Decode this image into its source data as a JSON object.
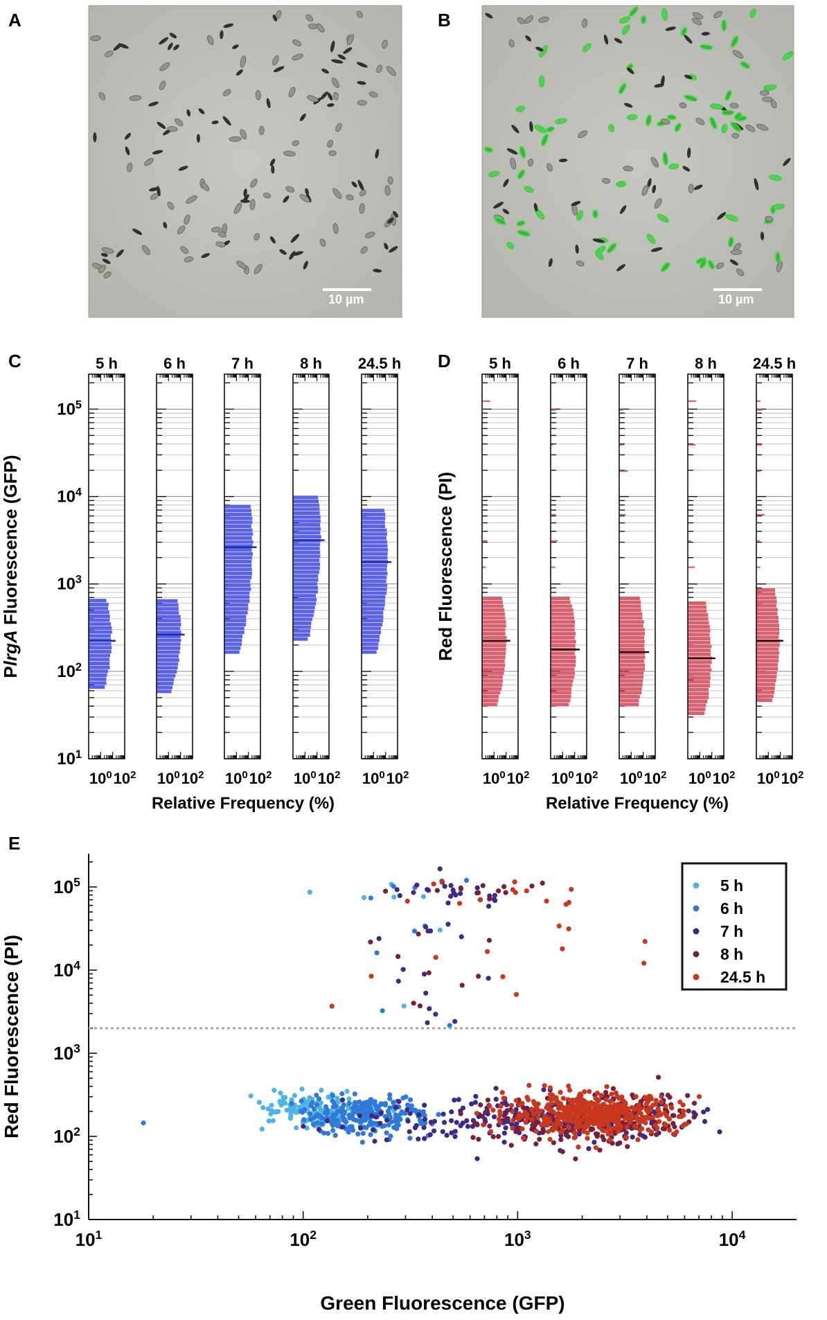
{
  "panels": {
    "A": {
      "label": "A",
      "scale_bar": "10 µm",
      "fluorescent_cells": false
    },
    "B": {
      "label": "B",
      "scale_bar": "10 µm",
      "fluorescent_cells": true
    },
    "C": {
      "label": "C"
    },
    "D": {
      "label": "D"
    },
    "E": {
      "label": "E"
    }
  },
  "colors": {
    "gfp_hist": "#5a63e8",
    "pi_hist": "#d9606e",
    "series_5h": "#4fb3e3",
    "series_6h": "#2f7ad8",
    "series_7h": "#3e2a86",
    "series_8h": "#7a1f37",
    "series_24h": "#c8381e",
    "gfp_cell": "#3fe040"
  },
  "chart_data": [
    {
      "id": "C",
      "type": "histogram-log",
      "ylabel_pre": "P",
      "ylabel_italic": "lrgA",
      "ylabel_post": " Fluorescence (GFP)",
      "xlabel": "Relative Frequency (%)",
      "y_ticks": [
        "10^1",
        "10^2",
        "10^3",
        "10^4",
        "10^5"
      ],
      "x_ticks": [
        "10^0",
        "10^2"
      ],
      "yrange_log10": [
        1,
        5.4
      ],
      "xrange_log10": [
        -1,
        2
      ],
      "columns": [
        {
          "label": "5 h",
          "min_log": 1.8,
          "max_log": 2.85,
          "median_log": 2.35,
          "peak_pct": 8
        },
        {
          "label": "6 h",
          "min_log": 1.75,
          "max_log": 2.85,
          "median_log": 2.42,
          "peak_pct": 10
        },
        {
          "label": "7 h",
          "min_log": 2.2,
          "max_log": 3.9,
          "median_log": 3.42,
          "peak_pct": 22
        },
        {
          "label": "8 h",
          "min_log": 2.35,
          "max_log": 4.0,
          "median_log": 3.5,
          "peak_pct": 20
        },
        {
          "label": "24.5 h",
          "min_log": 2.2,
          "max_log": 3.85,
          "median_log": 3.25,
          "peak_pct": 14
        }
      ]
    },
    {
      "id": "D",
      "type": "histogram-log",
      "ylabel": "Red Fluorescence (PI)",
      "xlabel": "Relative Frequency (%)",
      "y_ticks": [
        "10^1",
        "10^2",
        "10^3",
        "10^4",
        "10^5"
      ],
      "x_ticks": [
        "10^0",
        "10^2"
      ],
      "yrange_log10": [
        1,
        5.4
      ],
      "xrange_log10": [
        -1,
        2
      ],
      "columns": [
        {
          "label": "5 h",
          "min_log": 1.6,
          "max_log": 2.85,
          "median_log": 2.35,
          "peak_pct": 10
        },
        {
          "label": "6 h",
          "min_log": 1.6,
          "max_log": 2.85,
          "median_log": 2.25,
          "peak_pct": 12
        },
        {
          "label": "7 h",
          "min_log": 1.6,
          "max_log": 2.85,
          "median_log": 2.22,
          "peak_pct": 14
        },
        {
          "label": "8 h",
          "min_log": 1.5,
          "max_log": 2.8,
          "median_log": 2.15,
          "peak_pct": 9
        },
        {
          "label": "24.5 h",
          "min_log": 1.65,
          "max_log": 2.95,
          "median_log": 2.35,
          "peak_pct": 8
        }
      ],
      "outliers_log": [
        5.1,
        5.0,
        4.6,
        4.3,
        3.8,
        3.5,
        3.2
      ]
    },
    {
      "id": "E",
      "type": "scatter",
      "xlabel": "Green Fluorescence (GFP)",
      "ylabel": "Red Fluorescence (PI)",
      "x_ticks": [
        "10^1",
        "10^2",
        "10^3",
        "10^4"
      ],
      "y_ticks": [
        "10^1",
        "10^2",
        "10^3",
        "10^4",
        "10^5"
      ],
      "xrange_log10": [
        1,
        4.3
      ],
      "yrange_log10": [
        1,
        5.4
      ],
      "threshold_y": 2000,
      "legend_position": "top-right",
      "series": [
        {
          "name": "5 h",
          "color_key": "series_5h",
          "n": 150,
          "cx_log": 2.05,
          "sx": 0.14,
          "cy_log": 2.3,
          "sy": 0.1,
          "high_n": 8,
          "high_cx": 2.45,
          "high_sx": 0.2
        },
        {
          "name": "6 h",
          "color_key": "series_6h",
          "n": 240,
          "cx_log": 2.28,
          "sx": 0.15,
          "cy_log": 2.25,
          "sy": 0.11,
          "high_n": 8,
          "high_cx": 2.55,
          "high_sx": 0.2
        },
        {
          "name": "7 h",
          "color_key": "series_7h",
          "n": 260,
          "cx_log": 3.1,
          "sx": 0.35,
          "cy_log": 2.22,
          "sy": 0.13,
          "high_n": 40,
          "high_cx": 2.7,
          "high_sx": 0.17
        },
        {
          "name": "8 h",
          "color_key": "series_8h",
          "n": 230,
          "cx_log": 3.35,
          "sx": 0.23,
          "cy_log": 2.2,
          "sy": 0.15,
          "high_n": 20,
          "high_cx": 2.8,
          "high_sx": 0.3
        },
        {
          "name": "24.5 h",
          "color_key": "series_24h",
          "n": 460,
          "cx_log": 3.35,
          "sx": 0.2,
          "cy_log": 2.27,
          "sy": 0.12,
          "high_n": 24,
          "high_cx": 2.85,
          "high_sx": 0.3
        }
      ],
      "isolated_points": [
        {
          "series": "6 h",
          "x": 18,
          "y": 145
        }
      ]
    }
  ]
}
